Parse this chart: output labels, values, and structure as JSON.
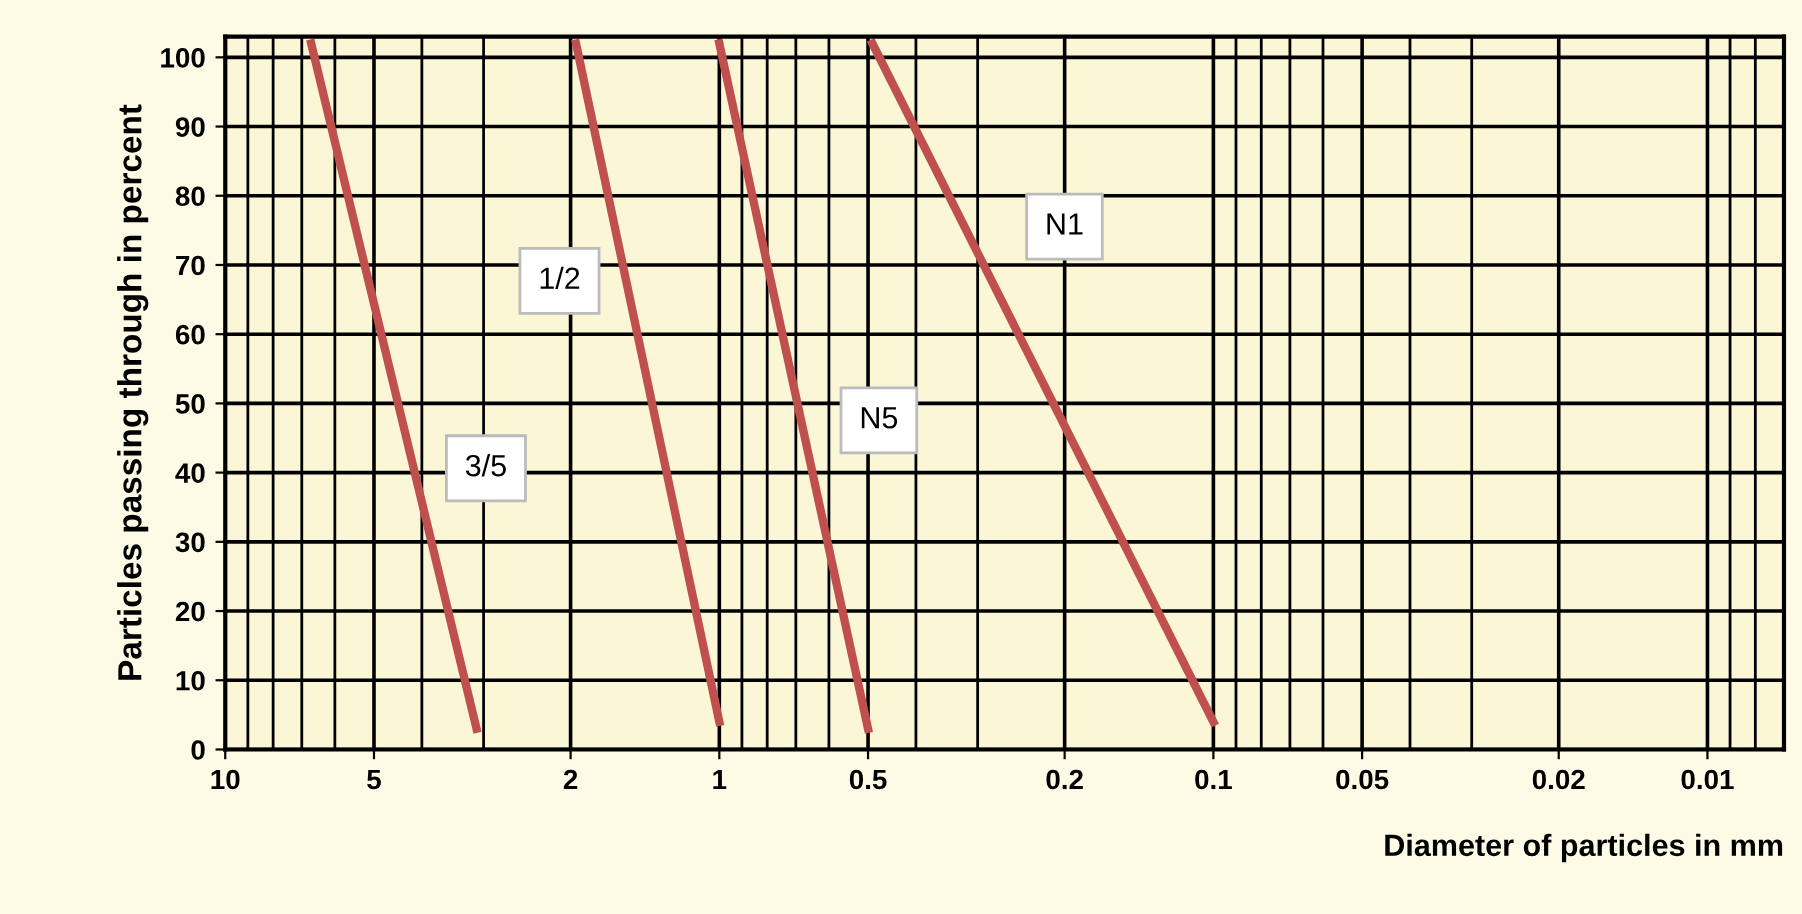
{
  "chart_data": {
    "type": "line",
    "xlabel": "Diameter of particles in mm",
    "ylabel": "Particles passing through in percent",
    "log": "x",
    "xlim": [
      10,
      0.007
    ],
    "ylim": [
      0,
      103
    ],
    "xticks": [
      10,
      5,
      2,
      1,
      0.5,
      0.2,
      0.1,
      0.05,
      0.02,
      0.01
    ],
    "yticks": [
      0,
      10,
      20,
      30,
      40,
      50,
      60,
      70,
      80,
      90,
      100
    ],
    "grid": true,
    "legend": false,
    "marker": "none",
    "line_style": "solid",
    "series": [
      {
        "name": "3/5",
        "color": "#c0504d",
        "x": [
          6.7,
          3.1
        ],
        "values": [
          102,
          3
        ]
      },
      {
        "name": "1/2",
        "color": "#c0504d",
        "x": [
          1.95,
          1.0
        ],
        "values": [
          102,
          4
        ]
      },
      {
        "name": "N5",
        "color": "#c0504d",
        "x": [
          1.0,
          0.5
        ],
        "values": [
          102,
          3
        ]
      },
      {
        "name": "N1",
        "color": "#c0504d",
        "x": [
          0.49,
          0.1
        ],
        "values": [
          102,
          4
        ]
      }
    ]
  }
}
